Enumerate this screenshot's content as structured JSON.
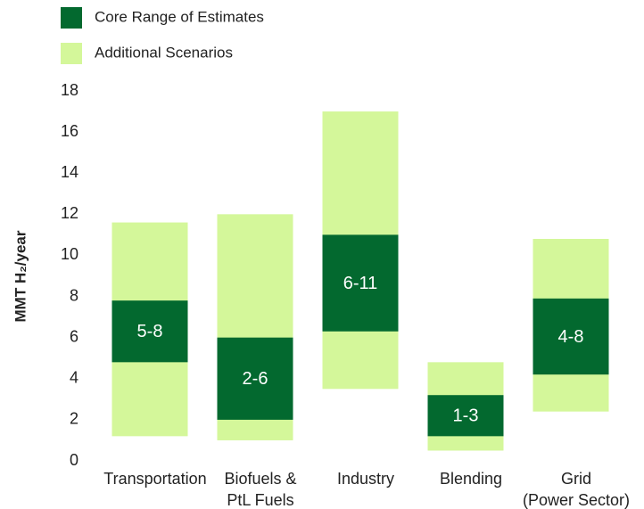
{
  "chart_data": {
    "type": "floating_bar",
    "y_label": "MMT H₂/year",
    "categories": [
      [
        "Transportation"
      ],
      [
        "Biofuels &",
        "PtL Fuels"
      ],
      [
        "Industry"
      ],
      [
        "Blending"
      ],
      [
        "Grid",
        "(Power Sector)"
      ]
    ],
    "series": [
      {
        "name": "Additional Scenarios",
        "color": "#d4f79a",
        "low": [
          1.2,
          1.0,
          3.5,
          0.5,
          2.4
        ],
        "high": [
          11.6,
          12,
          17,
          4.8,
          10.8
        ]
      },
      {
        "name": "Core Range of Estimates",
        "color": "#03692f",
        "low": [
          4.8,
          2.0,
          6.3,
          1.2,
          4.2
        ],
        "high": [
          7.8,
          6.0,
          11,
          3.2,
          7.9
        ],
        "value_labels": [
          "5-8",
          "2-6",
          "6-11",
          "1-3",
          "4-8"
        ]
      }
    ],
    "ylim": [
      0,
      18
    ],
    "yticks": [
      0,
      2,
      4,
      6,
      8,
      10,
      12,
      14,
      16,
      18
    ],
    "grid": false
  }
}
